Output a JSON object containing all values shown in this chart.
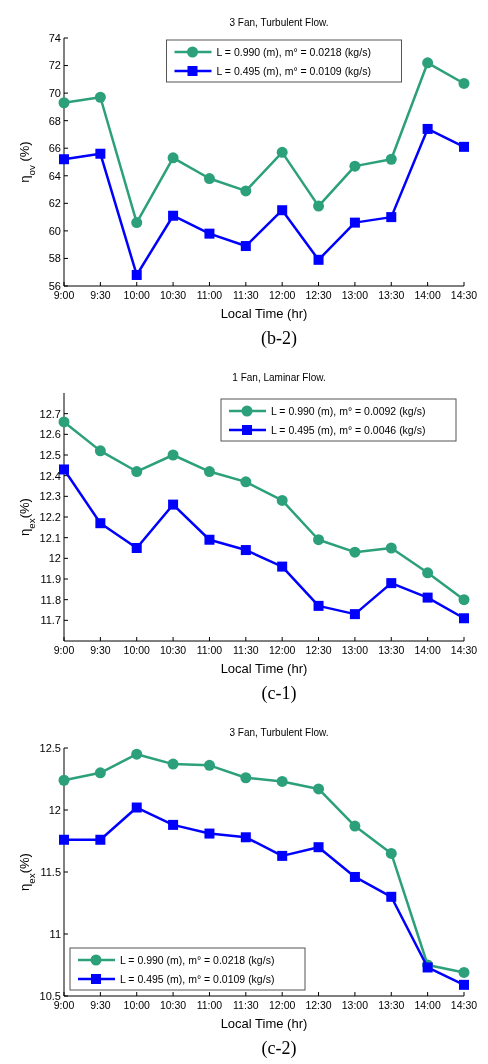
{
  "chart_data": [
    {
      "type": "line",
      "title": "3 Fan, Turbulent Flow.",
      "xlabel": "Local Time (hr)",
      "ylabel": "η$_{ov}$ (%)",
      "categories": [
        "9:00",
        "9:30",
        "10:00",
        "10:30",
        "11:00",
        "11:30",
        "12:00",
        "12:30",
        "13:00",
        "13:30",
        "14:00",
        "14:30"
      ],
      "series": [
        {
          "name": "L = 0.990 (m), m° = 0.0218 (kg/s)",
          "color": "#2ca07a",
          "marker": "circle",
          "values": [
            69.3,
            69.7,
            60.6,
            65.3,
            63.8,
            62.9,
            65.7,
            61.8,
            64.7,
            65.2,
            72.2,
            70.7
          ]
        },
        {
          "name": "L = 0.495 (m), m° = 0.0109 (kg/s)",
          "color": "#0000ff",
          "marker": "square",
          "values": [
            65.2,
            65.6,
            56.8,
            61.1,
            59.8,
            58.9,
            61.5,
            57.9,
            60.6,
            61.0,
            67.4,
            66.1
          ]
        }
      ],
      "ylim": [
        56,
        74
      ],
      "yticks": [
        56,
        58,
        60,
        62,
        64,
        66,
        68,
        70,
        72,
        74
      ],
      "legend": "top",
      "annotations": [
        "(b-2)"
      ]
    },
    {
      "type": "line",
      "title": "1 Fan, Laminar Flow.",
      "xlabel": "Local Time (hr)",
      "ylabel": "η$_{ex}$(%)",
      "categories": [
        "9:00",
        "9:30",
        "10:00",
        "10:30",
        "11:00",
        "11:30",
        "12:00",
        "12:30",
        "13:00",
        "13:30",
        "14:00",
        "14:30"
      ],
      "series": [
        {
          "name": "L = 0.990 (m), m° = 0.0092 (kg/s)",
          "color": "#2ca07a",
          "marker": "circle",
          "values": [
            12.66,
            12.52,
            12.42,
            12.5,
            12.42,
            12.37,
            12.28,
            12.09,
            12.03,
            12.05,
            11.93,
            11.8
          ]
        },
        {
          "name": "L = 0.495 (m), m° = 0.0046 (kg/s)",
          "color": "#0000ff",
          "marker": "square",
          "values": [
            12.43,
            12.17,
            12.05,
            12.26,
            12.09,
            12.04,
            11.96,
            11.77,
            11.73,
            11.88,
            11.81,
            11.71
          ]
        }
      ],
      "ylim": [
        11.6,
        12.8
      ],
      "yticks": [
        11.7,
        11.8,
        11.9,
        {
          "value": 12,
          "label": "12"
        },
        12.1,
        12.2,
        12.3,
        12.4,
        12.5,
        12.6,
        12.7
      ],
      "legend": "top right",
      "annotations": [
        "(c-1)"
      ]
    },
    {
      "type": "line",
      "title": "3 Fan, Turbulent Flow.",
      "xlabel": "Local Time (hr)",
      "ylabel": "η$_{ex}$(%)",
      "categories": [
        "9:00",
        "9:30",
        "10:00",
        "10:30",
        "11:00",
        "11:30",
        "12:00",
        "12:30",
        "13:00",
        "13:30",
        "14:00",
        "14:30"
      ],
      "series": [
        {
          "name": "L = 0.990 (m), m° = 0.0218 (kg/s)",
          "color": "#2ca07a",
          "marker": "circle",
          "values": [
            12.24,
            12.3,
            12.45,
            12.37,
            12.36,
            12.26,
            12.23,
            12.17,
            11.87,
            11.65,
            10.75,
            10.69
          ]
        },
        {
          "name": "L = 0.495 (m), m° = 0.0109 (kg/s)",
          "color": "#0000ff",
          "marker": "square",
          "values": [
            11.76,
            11.76,
            12.02,
            11.88,
            11.81,
            11.78,
            11.63,
            11.7,
            11.46,
            11.3,
            10.73,
            10.59
          ]
        }
      ],
      "ylim": [
        10.5,
        12.5
      ],
      "yticks": [
        10.5,
        11,
        11.5,
        12,
        12.5
      ],
      "legend": "bottom left",
      "annotations": [
        "(c-2)"
      ]
    }
  ]
}
